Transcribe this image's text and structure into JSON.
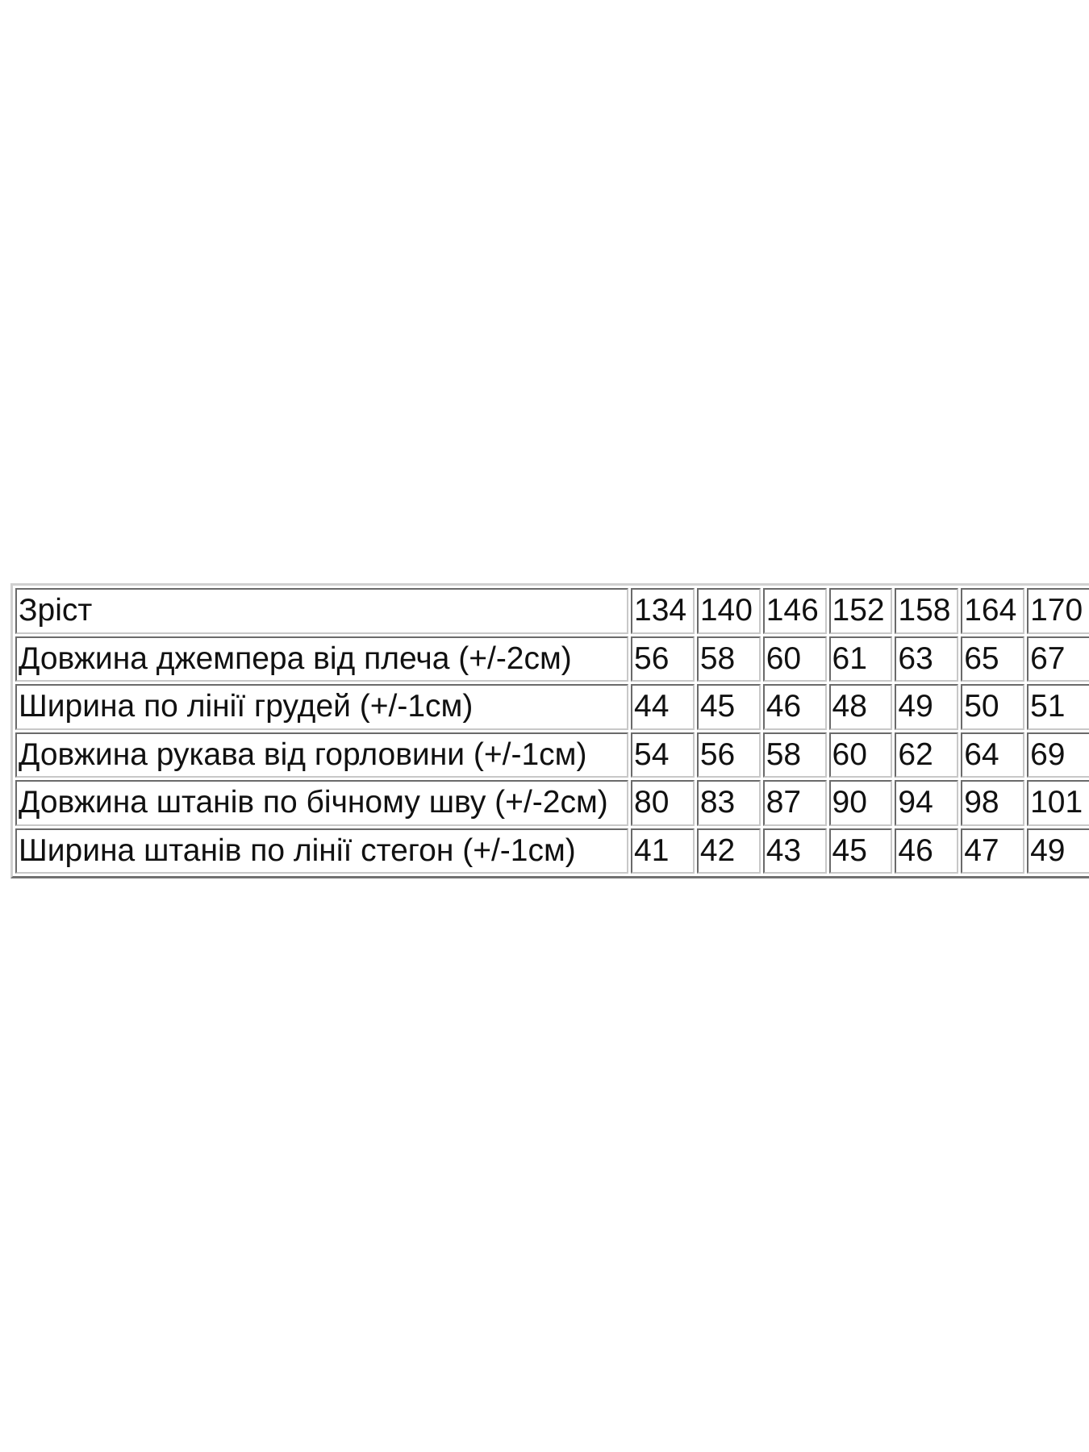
{
  "size_chart": {
    "header": {
      "label": "Зріст",
      "sizes": [
        "134",
        "140",
        "146",
        "152",
        "158",
        "164",
        "170"
      ]
    },
    "rows": [
      {
        "label": "Довжина джемпера від плеча (+/-2см)",
        "values": [
          "56",
          "58",
          "60",
          "61",
          "63",
          "65",
          "67"
        ]
      },
      {
        "label": "Ширина по лінії грудей (+/-1см)",
        "values": [
          "44",
          "45",
          "46",
          "48",
          "49",
          "50",
          "51"
        ]
      },
      {
        "label": "Довжина рукава від горловини (+/-1см)",
        "values": [
          "54",
          "56",
          "58",
          "60",
          "62",
          "64",
          "69"
        ]
      },
      {
        "label": "Довжина штанів по бічному шву (+/-2см)",
        "values": [
          "80",
          "83",
          "87",
          "90",
          "94",
          "98",
          "101"
        ]
      },
      {
        "label": "Ширина штанів по лінії стегон (+/-1см)",
        "values": [
          "41",
          "42",
          "43",
          "45",
          "46",
          "47",
          "49"
        ]
      }
    ]
  }
}
